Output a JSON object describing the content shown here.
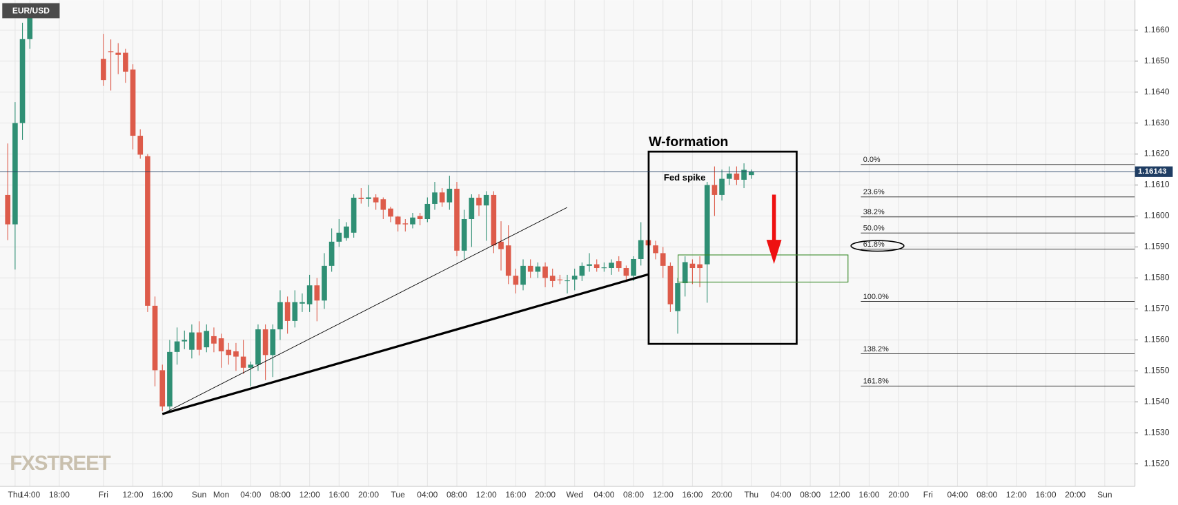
{
  "chart_data": {
    "type": "candlestick",
    "ticker": "EUR/USD",
    "logo": "FXSTREET",
    "annotations": {
      "pattern": "W-formation",
      "spike": "Fed spike"
    },
    "up_color": "#2f8f74",
    "down_color": "#dd5b4a",
    "ylim": [
      1.15127,
      1.16697
    ],
    "yticks": [
      {
        "value": 1.166,
        "label": "1.1660"
      },
      {
        "value": 1.165,
        "label": "1.1650"
      },
      {
        "value": 1.164,
        "label": "1.1640"
      },
      {
        "value": 1.163,
        "label": "1.1630"
      },
      {
        "value": 1.162,
        "label": "1.1620"
      },
      {
        "value": 1.161,
        "label": "1.1610"
      },
      {
        "value": 1.16,
        "label": "1.1600"
      },
      {
        "value": 1.159,
        "label": "1.1590"
      },
      {
        "value": 1.158,
        "label": "1.1580"
      },
      {
        "value": 1.157,
        "label": "1.1570"
      },
      {
        "value": 1.156,
        "label": "1.1560"
      },
      {
        "value": 1.155,
        "label": "1.1550"
      },
      {
        "value": 1.154,
        "label": "1.1540"
      },
      {
        "value": 1.153,
        "label": "1.1530"
      },
      {
        "value": 1.152,
        "label": "1.1520"
      }
    ],
    "grid": true,
    "last_price": 1.16143,
    "fib": {
      "start": 1.16166,
      "end": 1.15724,
      "levels": [
        {
          "value": 0,
          "label": "0.0%"
        },
        {
          "value": 23.6,
          "label": "23.6%"
        },
        {
          "value": 38.2,
          "label": "38.2%"
        },
        {
          "value": 50,
          "label": "50.0%"
        },
        {
          "value": 61.8,
          "label": "61.8%"
        },
        {
          "value": 100,
          "label": "100.0%"
        },
        {
          "value": 138.2,
          "label": "138.2%"
        },
        {
          "value": 161.8,
          "label": "161.8%"
        }
      ]
    },
    "categories": [
      null,
      "Thu",
      null,
      "14:00",
      null,
      null,
      null,
      "18:00",
      null,
      null,
      null,
      null,
      null,
      "Fri",
      null,
      null,
      null,
      "12:00",
      null,
      null,
      null,
      "16:00",
      null,
      null,
      null,
      null,
      "Sun",
      null,
      null,
      "Mon",
      null,
      null,
      null,
      "04:00",
      null,
      null,
      null,
      "08:00",
      null,
      null,
      null,
      "12:00",
      null,
      null,
      null,
      "16:00",
      null,
      null,
      null,
      "20:00",
      null,
      null,
      null,
      "Tue",
      null,
      null,
      null,
      "04:00",
      null,
      null,
      null,
      "08:00",
      null,
      null,
      null,
      "12:00",
      null,
      null,
      null,
      "16:00",
      null,
      null,
      null,
      "20:00",
      null,
      null,
      null,
      "Wed",
      null,
      null,
      null,
      "04:00",
      null,
      null,
      null,
      "08:00",
      null,
      null,
      null,
      "12:00",
      null,
      null,
      null,
      "16:00",
      null,
      null,
      null,
      "20:00",
      null,
      null,
      null,
      "Thu",
      null,
      null,
      null,
      "04:00",
      null,
      null,
      null,
      "08:00",
      null,
      null,
      null,
      "12:00",
      null,
      null,
      null,
      "16:00",
      null,
      null,
      null,
      "20:00",
      null,
      null,
      null,
      "Fri",
      null,
      null,
      null,
      "04:00",
      null,
      null,
      null,
      "08:00",
      null,
      null,
      null,
      "12:00",
      null,
      null,
      null,
      "16:00",
      null,
      null,
      null,
      "20:00",
      null,
      null,
      null,
      "Sun",
      null,
      null
    ],
    "open": [
      1.16068,
      1.15973,
      1.163,
      1.16571,
      null,
      null,
      null,
      null,
      null,
      null,
      null,
      null,
      null,
      1.16507,
      1.16532,
      1.16527,
      1.16527,
      1.16473,
      1.16259,
      1.16193,
      1.1571,
      1.15502,
      1.15385,
      1.15561,
      1.15595,
      1.15568,
      1.15624,
      1.15576,
      1.15612,
      1.15605,
      1.15568,
      1.15563,
      1.15546,
      1.1551,
      1.1552,
      1.15634,
      1.15551,
      1.15634,
      1.15722,
      1.15661,
      1.15717,
      1.15715,
      1.15776,
      1.15727,
      1.15839,
      1.15917,
      1.15929,
      1.15946,
      1.16059,
      1.16055,
      1.1606,
      1.16054,
      1.16024,
      1.15998,
      1.15976,
      1.15973,
      1.16,
      1.1599,
      1.16039,
      1.16076,
      1.16044,
      1.16088,
      1.15888,
      1.1599,
      1.16059,
      1.16034,
      1.16068,
      1.15917,
      1.15905,
      1.15807,
      1.15778,
      1.15839,
      1.1582,
      1.15837,
      1.15807,
      1.15795,
      1.1579,
      1.15795,
      1.15807,
      1.15839,
      1.15844,
      1.15832,
      1.15832,
      1.15854,
      1.15832,
      1.15807,
      1.15861,
      1.15922,
      1.15905,
      1.1588,
      1.15839,
      1.15693,
      1.15783,
      1.15846,
      1.15844,
      1.15844,
      1.161,
      1.16068,
      1.1612,
      1.16137,
      1.16117,
      1.16132,
      null,
      null,
      null,
      null,
      null,
      null,
      null,
      null,
      null,
      null,
      null,
      null,
      null,
      null,
      null,
      null,
      null,
      null,
      null,
      null,
      null,
      null,
      null,
      null,
      null,
      null,
      null,
      null,
      null,
      null,
      null,
      null,
      null,
      null,
      null,
      null,
      null,
      null,
      null,
      null,
      null,
      null,
      null,
      null,
      null,
      null,
      null,
      null,
      null,
      null
    ],
    "high": [
      1.16234,
      1.16368,
      1.16624,
      1.1668,
      null,
      null,
      null,
      null,
      null,
      null,
      null,
      null,
      null,
      1.16588,
      1.1657,
      1.16558,
      1.1654,
      1.1649,
      1.1628,
      1.162,
      1.1574,
      1.1552,
      1.156,
      1.1564,
      1.1563,
      1.1565,
      1.1566,
      1.1565,
      1.1564,
      1.1562,
      1.1559,
      1.1559,
      1.156,
      1.1553,
      1.1565,
      1.1565,
      1.1565,
      1.1576,
      1.1574,
      1.1576,
      1.1575,
      1.1581,
      1.158,
      1.1588,
      1.1596,
      1.1599,
      1.1598,
      1.1607,
      1.1609,
      1.161,
      1.1607,
      1.1606,
      1.1603,
      1.16,
      1.1599,
      1.1601,
      1.1601,
      1.1606,
      1.1611,
      1.1609,
      1.1613,
      1.1611,
      1.1602,
      1.1607,
      1.1607,
      1.1608,
      1.1608,
      1.15983,
      1.1597,
      1.1583,
      1.1586,
      1.1586,
      1.1585,
      1.1585,
      1.1583,
      1.1581,
      1.1581,
      1.1583,
      1.1585,
      1.1588,
      1.1586,
      1.1585,
      1.1586,
      1.1587,
      1.1584,
      1.1587,
      1.1598,
      1.1594,
      1.1592,
      1.159,
      1.1585,
      1.158,
      1.1587,
      1.1586,
      1.1587,
      1.1611,
      1.1616,
      1.1615,
      1.1616,
      1.1616,
      1.1617,
      1.1615,
      null,
      null,
      null,
      null,
      null,
      null,
      null,
      null,
      null,
      null,
      null,
      null,
      null,
      null,
      null,
      null,
      null,
      null,
      null,
      null,
      null,
      null,
      null,
      null,
      null,
      null,
      null,
      null,
      null,
      null,
      null,
      null,
      null,
      null,
      null,
      null,
      null,
      null,
      null,
      null,
      null,
      null,
      null,
      null,
      null,
      null,
      null,
      null,
      null,
      null
    ],
    "low": [
      1.15922,
      1.15827,
      1.16246,
      1.1654,
      null,
      null,
      null,
      null,
      null,
      null,
      null,
      null,
      null,
      1.1642,
      1.16405,
      1.16458,
      1.1643,
      1.16215,
      1.16185,
      1.1569,
      1.1545,
      1.1537,
      1.1537,
      1.1552,
      1.1557,
      1.1554,
      1.1555,
      1.1556,
      1.1556,
      1.1551,
      1.1552,
      1.155,
      1.1549,
      1.1545,
      1.155,
      1.1547,
      1.1548,
      1.156,
      1.1562,
      1.1564,
      1.1569,
      1.1569,
      1.1566,
      1.157,
      1.1582,
      1.159,
      1.1592,
      1.1593,
      1.1604,
      1.1603,
      1.1602,
      1.1599,
      1.1598,
      1.1595,
      1.1595,
      1.1596,
      1.1597,
      1.1598,
      1.1602,
      1.1603,
      1.1602,
      1.1587,
      1.1586,
      1.159,
      1.16,
      1.1592,
      1.1588,
      1.15824,
      1.1578,
      1.1575,
      1.1576,
      1.158,
      1.158,
      1.1577,
      1.1577,
      1.1578,
      1.1575,
      1.1576,
      1.1579,
      1.1582,
      1.1582,
      1.1582,
      1.1581,
      1.1582,
      1.1579,
      1.1579,
      1.1584,
      1.1588,
      1.1586,
      1.158,
      1.1569,
      1.1562,
      1.1574,
      1.1578,
      1.1577,
      1.1572,
      1.16,
      1.1605,
      1.161,
      1.161,
      1.1609,
      1.1612,
      null,
      null,
      null,
      null,
      null,
      null,
      null,
      null,
      null,
      null,
      null,
      null,
      null,
      null,
      null,
      null,
      null,
      null,
      null,
      null,
      null,
      null,
      null,
      null,
      null,
      null,
      null,
      null,
      null,
      null,
      null,
      null,
      null,
      null,
      null,
      null,
      null,
      null,
      null,
      null,
      null,
      null,
      null,
      null,
      null,
      null,
      null,
      null,
      null,
      null
    ],
    "close": [
      1.15973,
      1.163,
      1.16571,
      1.16649,
      null,
      null,
      null,
      null,
      null,
      null,
      null,
      null,
      null,
      1.16439,
      1.16529,
      1.1652,
      1.16466,
      1.16259,
      1.16198,
      1.1571,
      1.15502,
      1.15385,
      1.15561,
      1.15595,
      1.156,
      1.15624,
      1.15568,
      1.15629,
      1.15588,
      1.15563,
      1.15551,
      1.15546,
      1.1551,
      1.1552,
      1.15634,
      1.15551,
      1.15634,
      1.15722,
      1.15661,
      1.15722,
      1.15722,
      1.15776,
      1.15727,
      1.15839,
      1.15917,
      1.15946,
      1.15966,
      1.16059,
      1.16055,
      1.1606,
      1.16044,
      1.1602,
      1.15998,
      1.15973,
      1.15973,
      1.15995,
      1.1599,
      1.16039,
      1.16076,
      1.16044,
      1.16088,
      1.15888,
      1.1599,
      1.16059,
      1.16034,
      1.16068,
      1.15905,
      1.15893,
      1.15807,
      1.15778,
      1.15839,
      1.1582,
      1.15837,
      1.158,
      1.1579,
      1.15793,
      1.15792,
      1.15807,
      1.15839,
      1.15844,
      1.15832,
      1.15834,
      1.15849,
      1.15832,
      1.15807,
      1.15861,
      1.15922,
      1.15905,
      1.1588,
      1.15839,
      1.15715,
      1.15783,
      1.15851,
      1.15832,
      1.15832,
      1.161,
      1.16068,
      1.1612,
      1.16137,
      1.16117,
      1.16149,
      1.16143,
      null,
      null,
      null,
      null,
      null,
      null,
      null,
      null,
      null,
      null,
      null,
      null,
      null,
      null,
      null,
      null,
      null,
      null,
      null,
      null,
      null,
      null,
      null,
      null,
      null,
      null,
      null,
      null,
      null,
      null,
      null,
      null,
      null,
      null,
      null,
      null,
      null,
      null,
      null,
      null,
      null,
      null,
      null,
      null,
      null,
      null,
      null,
      null,
      null,
      null
    ]
  }
}
